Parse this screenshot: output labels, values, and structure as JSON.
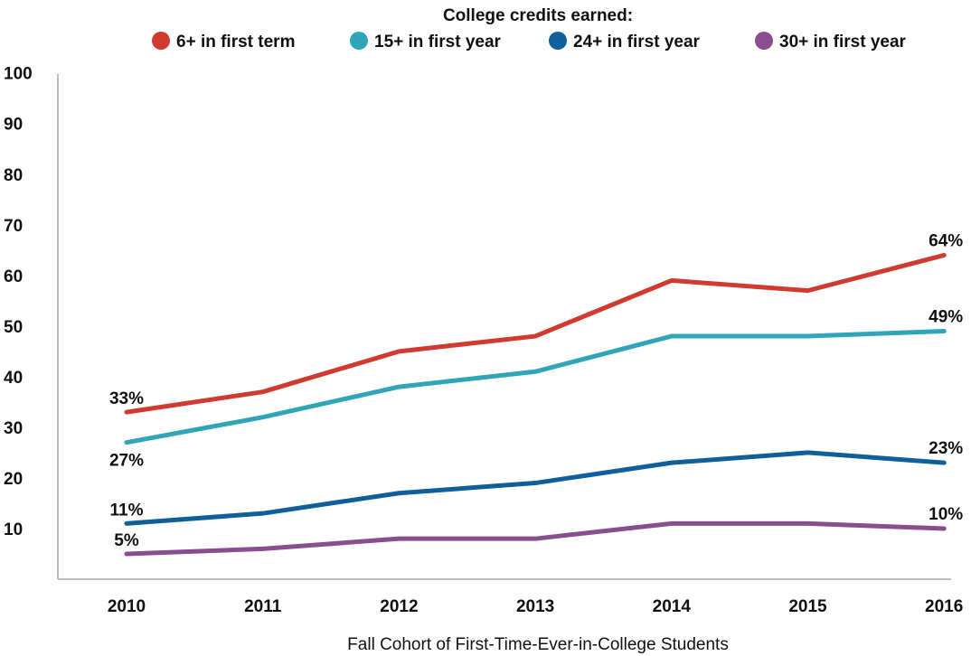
{
  "chart_data": {
    "type": "line",
    "legend_title": "College credits earned:",
    "legend_position": "top",
    "xlabel": "Fall Cohort of First-Time-Ever-in-College Students",
    "ylabel": "",
    "categories": [
      "2010",
      "2011",
      "2012",
      "2013",
      "2014",
      "2015",
      "2016"
    ],
    "y_ticks": [
      "100",
      "90",
      "80",
      "70",
      "60",
      "50",
      "40",
      "30",
      "20",
      "10"
    ],
    "ylim": [
      0,
      100
    ],
    "grid": false,
    "series": [
      {
        "name": "6+ in first term",
        "color": "#d03a2f",
        "values": [
          33,
          37,
          45,
          48,
          59,
          57,
          64
        ],
        "labels": {
          "start": "33%",
          "end": "64%"
        }
      },
      {
        "name": "15+ in first year",
        "color": "#30a5b8",
        "values": [
          27,
          32,
          38,
          41,
          48,
          48,
          49
        ],
        "labels": {
          "start": "27%",
          "end": "49%"
        }
      },
      {
        "name": "24+ in first year",
        "color": "#0f5f9a",
        "values": [
          11,
          13,
          17,
          19,
          23,
          25,
          23
        ],
        "labels": {
          "start": "11%",
          "end": "23%"
        }
      },
      {
        "name": "30+ in first year",
        "color": "#8a4d8f",
        "values": [
          5,
          6,
          8,
          8,
          11,
          11,
          10
        ],
        "labels": {
          "start": "5%",
          "end": "10%"
        }
      }
    ]
  }
}
